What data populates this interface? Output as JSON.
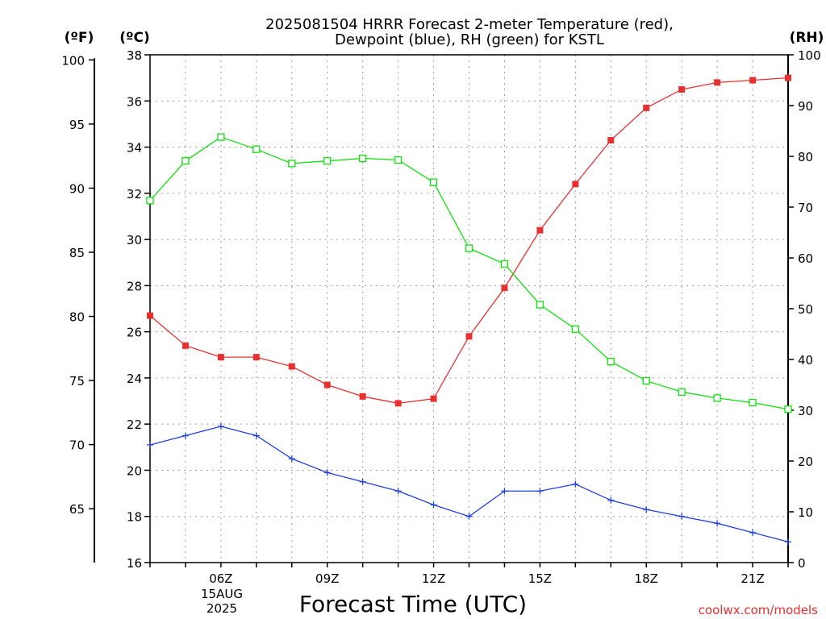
{
  "chart_data": {
    "type": "line",
    "title": "2025081504 HRRR Forecast 2-meter Temperature (red),",
    "subtitle": "Dewpoint (blue), RH (green) for KSTL",
    "xlabel": "Forecast Time (UTC)",
    "y_left_outer_label": "(ºF)",
    "y_left_label": "(ºC)",
    "y_right_label": "(RH)",
    "credit": "coolwx.com/models",
    "grid": true,
    "x": [
      "04Z",
      "05Z",
      "06Z",
      "07Z",
      "08Z",
      "09Z",
      "10Z",
      "11Z",
      "12Z",
      "13Z",
      "14Z",
      "15Z",
      "16Z",
      "17Z",
      "18Z",
      "19Z",
      "20Z",
      "21Z",
      "22Z"
    ],
    "x_ticks": [
      {
        "label": "06Z",
        "index": 2
      },
      {
        "label": "09Z",
        "index": 5
      },
      {
        "label": "12Z",
        "index": 8
      },
      {
        "label": "15Z",
        "index": 11
      },
      {
        "label": "18Z",
        "index": 14
      },
      {
        "label": "21Z",
        "index": 17
      }
    ],
    "x_date_lines": [
      "15AUG",
      "2025"
    ],
    "y_celsius": {
      "range": [
        16,
        38
      ],
      "ticks": [
        16,
        18,
        20,
        22,
        24,
        26,
        28,
        30,
        32,
        34,
        36,
        38
      ]
    },
    "y_fahrenheit": {
      "ticks": [
        65,
        70,
        75,
        80,
        85,
        90,
        95,
        100
      ]
    },
    "y_rh": {
      "range": [
        0,
        100
      ],
      "ticks": [
        0,
        10,
        20,
        30,
        40,
        50,
        60,
        70,
        80,
        90,
        100
      ]
    },
    "series": [
      {
        "name": "Temperature",
        "axis": "celsius",
        "color": "#e83030",
        "marker": "filled-square",
        "values": [
          26.7,
          25.4,
          24.9,
          24.9,
          24.5,
          23.7,
          23.2,
          22.9,
          23.1,
          25.8,
          27.9,
          30.4,
          32.4,
          34.3,
          35.7,
          36.5,
          36.8,
          36.9,
          37.0
        ]
      },
      {
        "name": "Dewpoint",
        "axis": "celsius",
        "color": "#2040e0",
        "marker": "plus",
        "values": [
          21.1,
          21.5,
          21.9,
          21.5,
          20.5,
          19.9,
          19.5,
          19.1,
          18.5,
          18.0,
          19.1,
          19.1,
          19.4,
          18.7,
          18.3,
          18.0,
          17.7,
          17.3,
          16.9
        ]
      },
      {
        "name": "RH",
        "axis": "rh",
        "color": "#10e010",
        "marker": "open-square",
        "values": [
          71.3,
          79.1,
          83.8,
          81.4,
          78.6,
          79.1,
          79.6,
          79.3,
          74.9,
          61.9,
          58.8,
          50.8,
          46.0,
          39.6,
          35.8,
          33.6,
          32.4,
          31.5,
          30.2
        ]
      }
    ]
  }
}
